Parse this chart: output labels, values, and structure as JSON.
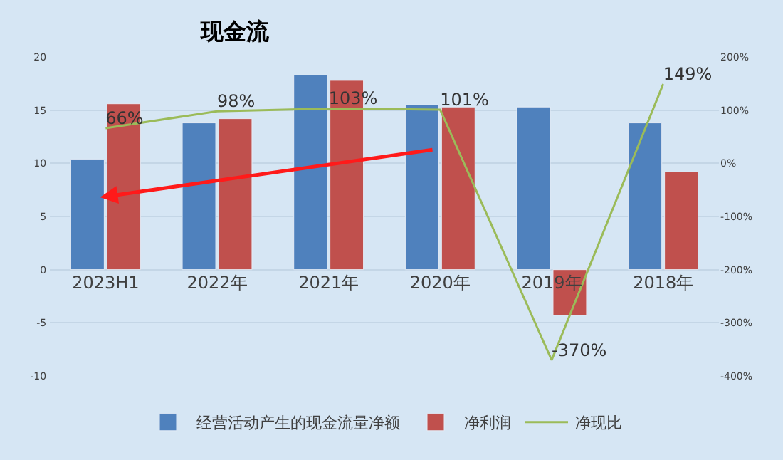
{
  "chart_data": {
    "type": "bar",
    "title": "现金流",
    "categories": [
      "2023H1",
      "2022年",
      "2021年",
      "2020年",
      "2019年",
      "2018年"
    ],
    "series": [
      {
        "name": "经营活动产生的现金流量净额",
        "color": "#4f81bd",
        "values": [
          10.4,
          13.8,
          18.3,
          15.5,
          15.3,
          13.8
        ]
      },
      {
        "name": "净利润",
        "color": "#c0504d",
        "values": [
          15.6,
          14.2,
          17.8,
          15.3,
          -4.3,
          9.2
        ]
      },
      {
        "name": "净现比",
        "type": "line",
        "axis": "y2",
        "color": "#9bbb59",
        "values": [
          66,
          98,
          103,
          101,
          -370,
          149
        ],
        "value_labels": [
          "66%",
          "98%",
          "103%",
          "101%",
          "-370%",
          "149%"
        ]
      }
    ],
    "ylim": [
      -10,
      20
    ],
    "yticks": [
      -10,
      -5,
      0,
      5,
      10,
      15,
      20
    ],
    "y2lim": [
      -400,
      200
    ],
    "y2ticks": [
      {
        "value": -400,
        "label": "-400%"
      },
      {
        "value": -300,
        "label": "-300%"
      },
      {
        "value": -200,
        "label": "-200%"
      },
      {
        "value": -100,
        "label": "-100%"
      },
      {
        "value": 0,
        "label": "0%"
      },
      {
        "value": 100,
        "label": "100%"
      },
      {
        "value": 200,
        "label": "200%"
      }
    ],
    "grid": "y",
    "legend": "bottom",
    "marker": "none",
    "line_style": "solid"
  }
}
